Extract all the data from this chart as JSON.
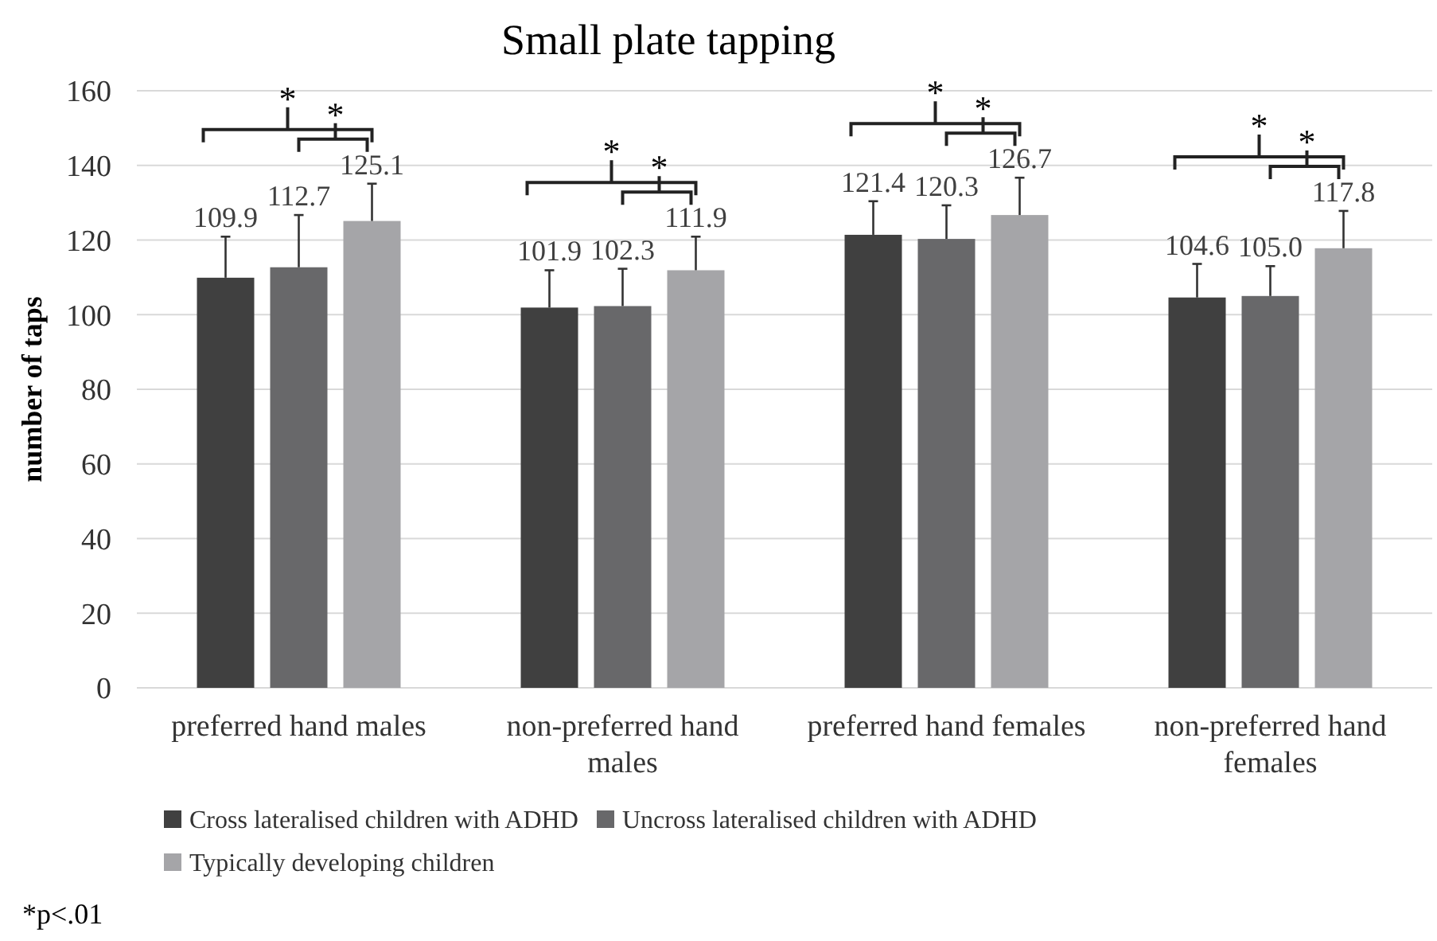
{
  "chart_data": {
    "type": "bar",
    "title": "Small plate tapping",
    "ylabel": "number of taps",
    "categories": [
      "preferred hand males",
      "non-preferred hand males",
      "preferred hand females",
      "non-preferred hand females"
    ],
    "series": [
      {
        "name": "Cross lateralised children with ADHD",
        "color": "#404040",
        "values": [
          109.9,
          101.9,
          121.4,
          104.6
        ],
        "errors": [
          11,
          10,
          9,
          9
        ]
      },
      {
        "name": "Uncross lateralised children with ADHD",
        "color": "#68686a",
        "values": [
          112.7,
          102.3,
          120.3,
          105.0
        ],
        "errors": [
          14,
          10,
          9,
          8
        ],
        "value_labels": [
          "112.7",
          "102.3",
          "120.3",
          "105.0"
        ]
      },
      {
        "name": "Typically developing children",
        "color": "#a5a5a8",
        "values": [
          125.1,
          111.9,
          126.7,
          117.8
        ],
        "errors": [
          10,
          9,
          10,
          10
        ]
      }
    ],
    "ylim": [
      0,
      160
    ],
    "yticks": [
      0,
      20,
      40,
      60,
      80,
      100,
      120,
      140,
      160
    ],
    "grid": "y",
    "legend": "bottom",
    "data_labels": true,
    "annotations": [
      "*",
      "*",
      "*",
      "*",
      "*",
      "*",
      "*",
      "*",
      "*p<.01"
    ]
  }
}
